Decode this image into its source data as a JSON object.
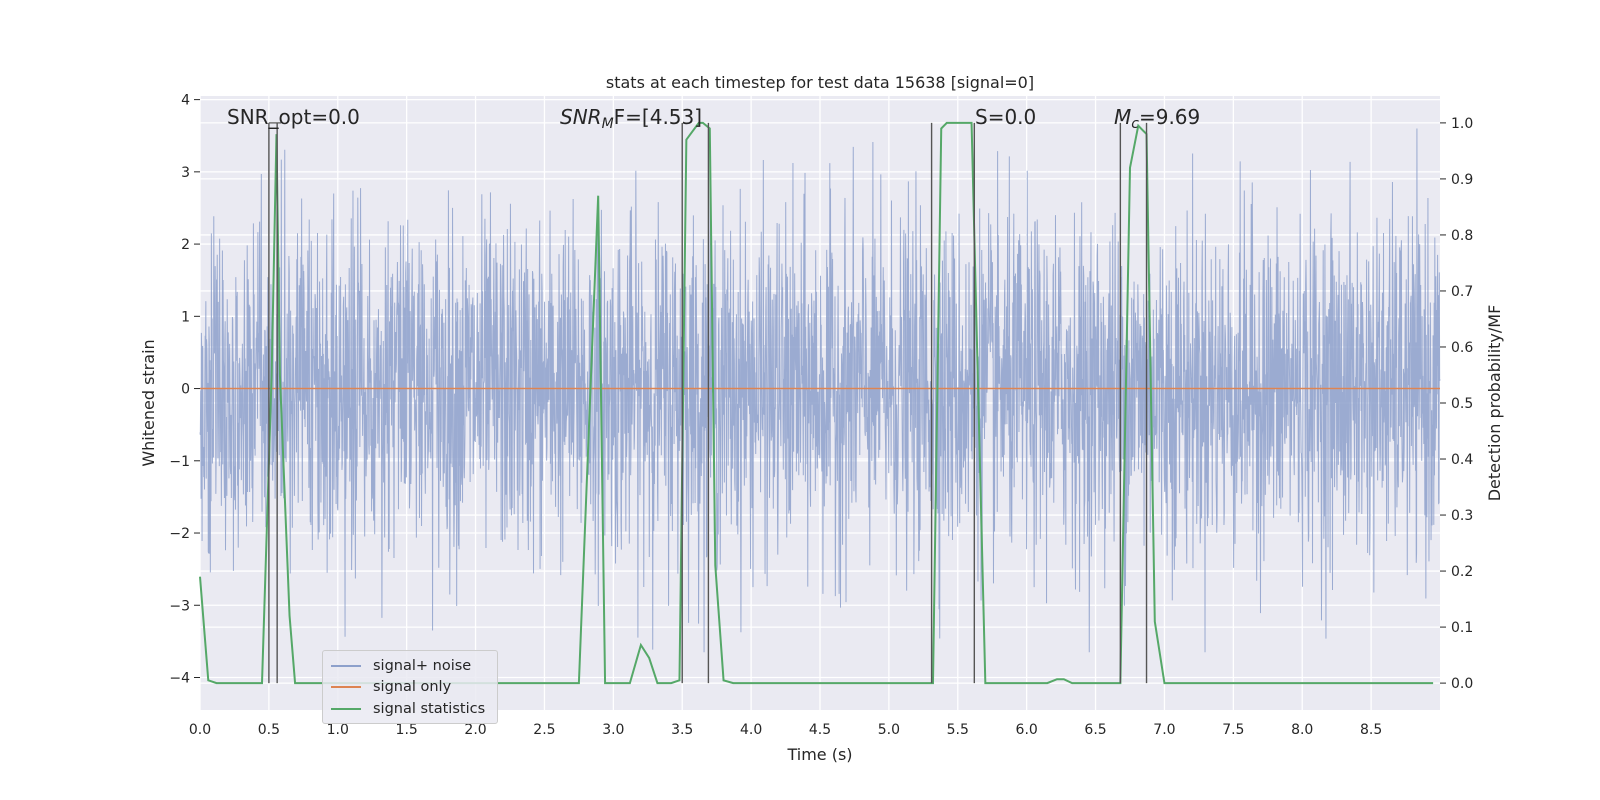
{
  "chart_data": {
    "type": "line",
    "title": "stats at each timestep for test data 15638 [signal=0]",
    "xlabel": "Time (s)",
    "ylabel": "Whitened strain",
    "y2label": "Detection probability/MF",
    "xlim": [
      0.0,
      9.0
    ],
    "ylim": [
      -4.45,
      4.05
    ],
    "y2lim": [
      -0.048,
      1.048
    ],
    "xticks": [
      "0.0",
      "0.5",
      "1.0",
      "1.5",
      "2.0",
      "2.5",
      "3.0",
      "3.5",
      "4.0",
      "4.5",
      "5.0",
      "5.5",
      "6.0",
      "6.5",
      "7.0",
      "7.5",
      "8.0",
      "8.5"
    ],
    "yticks": [
      "−4",
      "−3",
      "−2",
      "−1",
      "0",
      "1",
      "2",
      "3",
      "4"
    ],
    "y2ticks": [
      "0.0",
      "0.1",
      "0.2",
      "0.3",
      "0.4",
      "0.5",
      "0.6",
      "0.7",
      "0.8",
      "0.9",
      "1.0"
    ],
    "grid": true,
    "legend_position": "lower-left",
    "colors": {
      "noise": "#8da0cb",
      "signal": "#dd8452",
      "stats": "#55a868",
      "background": "#eaeaf2",
      "markers": "#555555"
    },
    "series": [
      {
        "name": "signal+ noise",
        "axis": "left",
        "description_values": "white noise, |y| mostly under 3.5, max ~3.6, min ~-3.65"
      },
      {
        "name": "signal only",
        "axis": "left",
        "x": [
          0.0,
          9.0
        ],
        "y": [
          0.0,
          0.0
        ]
      },
      {
        "name": "signal statistics",
        "axis": "right",
        "x": [
          0.0,
          0.06,
          0.12,
          0.45,
          0.52,
          0.555,
          0.58,
          0.65,
          0.69,
          2.75,
          2.83,
          2.89,
          2.94,
          3.12,
          3.2,
          3.26,
          3.32,
          3.42,
          3.48,
          3.53,
          3.56,
          3.62,
          3.65,
          3.7,
          3.74,
          3.8,
          3.87,
          5.32,
          5.38,
          5.42,
          5.6,
          5.7,
          5.76,
          6.15,
          6.22,
          6.27,
          6.33,
          6.68,
          6.75,
          6.81,
          6.87,
          6.93,
          7.0,
          7.5,
          8.0,
          8.5,
          8.95
        ],
        "y": [
          0.19,
          0.005,
          0.0,
          0.0,
          0.55,
          0.98,
          0.55,
          0.12,
          0.0,
          0.0,
          0.5,
          0.87,
          0.0,
          0.0,
          0.068,
          0.045,
          0.0,
          0.0,
          0.005,
          0.97,
          0.98,
          1.0,
          1.0,
          0.99,
          0.21,
          0.005,
          0.0,
          0.0,
          0.99,
          1.0,
          1.0,
          0.0,
          0.0,
          0.0,
          0.007,
          0.007,
          0.0,
          0.0,
          0.92,
          0.995,
          0.98,
          0.11,
          0.0,
          0.0,
          0.0,
          0.0,
          0.0
        ]
      }
    ],
    "vertical_markers": [
      0.5,
      0.56,
      3.5,
      3.69,
      5.31,
      5.62,
      6.68,
      6.87
    ],
    "annotations": [
      {
        "label": "SNR_opt=0.0",
        "x": 0.2
      },
      {
        "label": "SNR_MF=[4.53]",
        "x": 2.6
      },
      {
        "label": "S=0.0",
        "x": 5.62
      },
      {
        "label": "M_c=9.69",
        "x": 6.6
      }
    ]
  },
  "annotations_text": {
    "snr_opt": "SNR_opt=0.0",
    "snr_mf_main": "SNR",
    "snr_mf_sub": "M",
    "snr_mf_rest": "F=[4.53]",
    "s": "S=0.0",
    "mc_main": "M",
    "mc_sub": "c",
    "mc_rest": "=9.69"
  },
  "legend": {
    "noise": "signal+ noise",
    "signal": "signal only",
    "stats": "signal statistics"
  }
}
